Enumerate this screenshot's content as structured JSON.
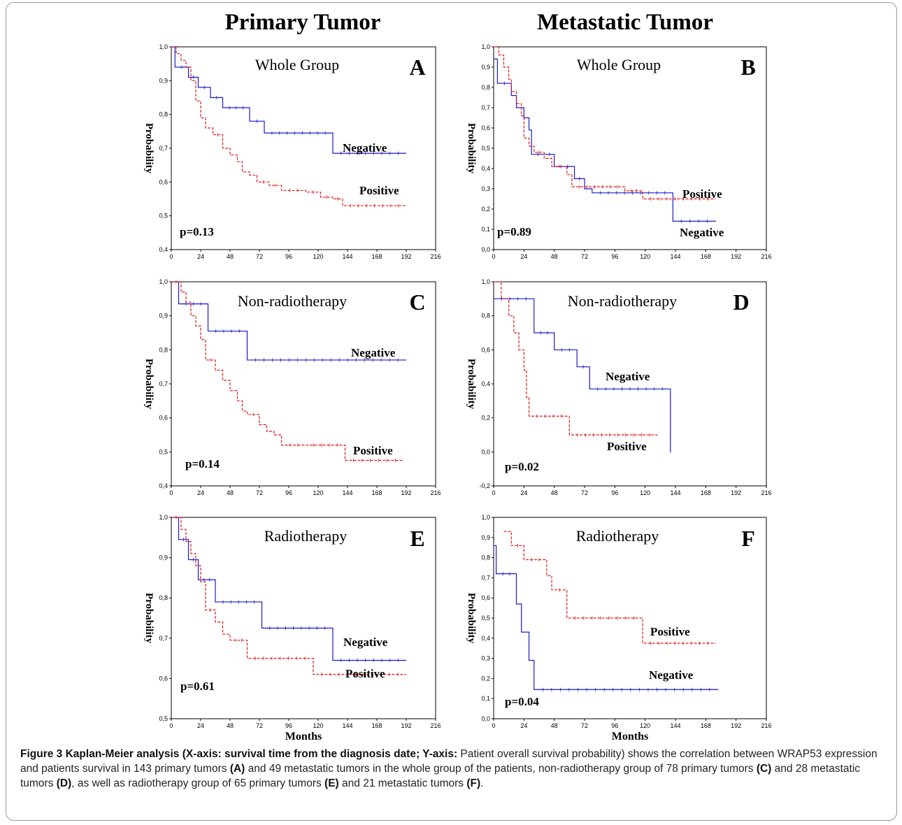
{
  "columns": {
    "left": "Primary Tumor",
    "right": "Metastatic Tumor"
  },
  "caption": {
    "figure_label": "Figure 3",
    "bold_lead": "Kaplan-Meier analysis (X-axis: survival time from the diagnosis date; Y-axis:",
    "text_1": " Patient overall survival probability) shows the correlation between WRAP53 expression and patients survival in 143 primary tumors ",
    "ref_a": "(A)",
    "text_2": " and 49 metastatic tumors in the whole group of the patients, non-radiotherapy group of 78 primary tumors ",
    "ref_c": "(C)",
    "text_3": " and 28 metastatic tumors ",
    "ref_d": "(D)",
    "text_4": ", as well as radiotherapy group of 65 primary tumors ",
    "ref_e": "(E)",
    "text_5": " and 21 metastatic tumors ",
    "ref_f": "(F)",
    "text_6": "."
  },
  "colors": {
    "negative": "#1a1acc",
    "positive": "#e01a1a"
  },
  "chart_data": [
    {
      "panel": "A",
      "type": "line",
      "title": "Whole Group",
      "ylabel": "Probability",
      "xlabel": "",
      "ylim": [
        0.4,
        1.0
      ],
      "xlim": [
        0,
        216
      ],
      "yticks": [
        "1,0",
        "0,9",
        "0,8",
        "0,7",
        "0,6",
        "0,5",
        "0,4"
      ],
      "xticks": [
        "0",
        "24",
        "48",
        "72",
        "96",
        "120",
        "144",
        "168",
        "192",
        "216"
      ],
      "p_value": "p=0.13",
      "series": [
        {
          "name": "Negative",
          "style": "solid",
          "censored_until": 192,
          "steps": [
            [
              0,
              1.0
            ],
            [
              3,
              0.94
            ],
            [
              14,
              0.91
            ],
            [
              22,
              0.88
            ],
            [
              32,
              0.85
            ],
            [
              42,
              0.82
            ],
            [
              64,
              0.78
            ],
            [
              76,
              0.745
            ],
            [
              132,
              0.685
            ],
            [
              192,
              0.685
            ]
          ]
        },
        {
          "name": "Positive",
          "style": "dashed",
          "censored_until": 192,
          "steps": [
            [
              0,
              1.0
            ],
            [
              4,
              0.98
            ],
            [
              8,
              0.96
            ],
            [
              12,
              0.94
            ],
            [
              16,
              0.9
            ],
            [
              20,
              0.84
            ],
            [
              24,
              0.79
            ],
            [
              28,
              0.76
            ],
            [
              34,
              0.74
            ],
            [
              42,
              0.7
            ],
            [
              48,
              0.68
            ],
            [
              54,
              0.66
            ],
            [
              58,
              0.63
            ],
            [
              64,
              0.62
            ],
            [
              70,
              0.6
            ],
            [
              80,
              0.59
            ],
            [
              90,
              0.575
            ],
            [
              110,
              0.57
            ],
            [
              122,
              0.555
            ],
            [
              132,
              0.55
            ],
            [
              140,
              0.53
            ],
            [
              192,
              0.53
            ]
          ]
        }
      ]
    },
    {
      "panel": "B",
      "type": "line",
      "title": "Whole Group",
      "ylabel": "Probability",
      "xlabel": "",
      "ylim": [
        0.0,
        1.0
      ],
      "xlim": [
        0,
        216
      ],
      "yticks": [
        "1,0",
        "0,9",
        "0,8",
        "0,7",
        "0,6",
        "0,5",
        "0,4",
        "0,3",
        "0,2",
        "0,1",
        "0,0"
      ],
      "xticks": [
        "0",
        "24",
        "48",
        "72",
        "96",
        "120",
        "144",
        "168",
        "192",
        "216"
      ],
      "p_value": "p=0.89",
      "series": [
        {
          "name": "Negative",
          "style": "solid",
          "censored_until": 176,
          "steps": [
            [
              0,
              0.94
            ],
            [
              3,
              0.82
            ],
            [
              14,
              0.76
            ],
            [
              18,
              0.7
            ],
            [
              24,
              0.65
            ],
            [
              28,
              0.59
            ],
            [
              30,
              0.47
            ],
            [
              40,
              0.47
            ],
            [
              48,
              0.41
            ],
            [
              64,
              0.35
            ],
            [
              72,
              0.3
            ],
            [
              78,
              0.28
            ],
            [
              142,
              0.14
            ],
            [
              176,
              0.14
            ]
          ]
        },
        {
          "name": "Positive",
          "style": "dashed",
          "censored_until": 176,
          "steps": [
            [
              0,
              1.0
            ],
            [
              4,
              0.96
            ],
            [
              8,
              0.9
            ],
            [
              12,
              0.84
            ],
            [
              14,
              0.78
            ],
            [
              18,
              0.72
            ],
            [
              22,
              0.66
            ],
            [
              24,
              0.55
            ],
            [
              28,
              0.51
            ],
            [
              32,
              0.48
            ],
            [
              40,
              0.45
            ],
            [
              46,
              0.41
            ],
            [
              58,
              0.37
            ],
            [
              62,
              0.31
            ],
            [
              104,
              0.29
            ],
            [
              118,
              0.25
            ],
            [
              176,
              0.25
            ]
          ]
        }
      ]
    },
    {
      "panel": "C",
      "type": "line",
      "title": "Non-radiotherapy",
      "ylabel": "Probability",
      "xlabel": "",
      "ylim": [
        0.4,
        1.0
      ],
      "xlim": [
        0,
        216
      ],
      "yticks": [
        "1,0",
        "0,9",
        "0,8",
        "0,7",
        "0,6",
        "0,5",
        "0,4"
      ],
      "xticks": [
        "0",
        "24",
        "48",
        "72",
        "96",
        "120",
        "144",
        "168",
        "192",
        "216"
      ],
      "p_value": "p=0.14",
      "series": [
        {
          "name": "Negative",
          "style": "solid",
          "censored_until": 192,
          "steps": [
            [
              0,
              1.0
            ],
            [
              6,
              0.935
            ],
            [
              30,
              0.855
            ],
            [
              62,
              0.77
            ],
            [
              192,
              0.77
            ]
          ]
        },
        {
          "name": "Positive",
          "style": "dashed",
          "censored_until": 190,
          "steps": [
            [
              0,
              1.0
            ],
            [
              8,
              0.97
            ],
            [
              12,
              0.94
            ],
            [
              16,
              0.9
            ],
            [
              20,
              0.87
            ],
            [
              24,
              0.83
            ],
            [
              28,
              0.77
            ],
            [
              36,
              0.74
            ],
            [
              42,
              0.71
            ],
            [
              48,
              0.68
            ],
            [
              54,
              0.65
            ],
            [
              58,
              0.62
            ],
            [
              62,
              0.61
            ],
            [
              72,
              0.58
            ],
            [
              78,
              0.56
            ],
            [
              84,
              0.55
            ],
            [
              90,
              0.52
            ],
            [
              110,
              0.52
            ],
            [
              142,
              0.475
            ],
            [
              190,
              0.475
            ]
          ]
        }
      ]
    },
    {
      "panel": "D",
      "type": "line",
      "title": "Non-radiotherapy",
      "ylabel": "Probability",
      "xlabel": "",
      "ylim": [
        -0.2,
        1.0
      ],
      "xlim": [
        0,
        216
      ],
      "yticks": [
        "1,0",
        "0,8",
        "0,6",
        "0,4",
        "0,2",
        "0,0",
        "-0,2"
      ],
      "xticks": [
        "0",
        "24",
        "48",
        "72",
        "96",
        "120",
        "144",
        "168",
        "192",
        "216"
      ],
      "p_value": "p=0.02",
      "series": [
        {
          "name": "Negative",
          "style": "solid",
          "censored_until": 140,
          "steps": [
            [
              0,
              0.9
            ],
            [
              32,
              0.7
            ],
            [
              48,
              0.6
            ],
            [
              66,
              0.5
            ],
            [
              76,
              0.37
            ],
            [
              140,
              0.0
            ],
            [
              140.5,
              0.0
            ]
          ]
        },
        {
          "name": "Positive",
          "style": "dashed",
          "censored_until": 130,
          "steps": [
            [
              0,
              1.0
            ],
            [
              6,
              0.9
            ],
            [
              12,
              0.8
            ],
            [
              16,
              0.7
            ],
            [
              20,
              0.6
            ],
            [
              24,
              0.48
            ],
            [
              26,
              0.32
            ],
            [
              28,
              0.21
            ],
            [
              60,
              0.1
            ],
            [
              130,
              0.1
            ]
          ]
        }
      ]
    },
    {
      "panel": "E",
      "type": "line",
      "title": "Radiotherapy",
      "ylabel": "Probability",
      "xlabel": "Months",
      "ylim": [
        0.5,
        1.0
      ],
      "xlim": [
        0,
        216
      ],
      "yticks": [
        "1,0",
        "0,9",
        "0,8",
        "0,7",
        "0,6",
        "0,5"
      ],
      "xticks": [
        "0",
        "24",
        "48",
        "72",
        "96",
        "120",
        "144",
        "168",
        "192",
        "216"
      ],
      "p_value": "p=0.61",
      "series": [
        {
          "name": "Negative",
          "style": "solid",
          "censored_until": 192,
          "steps": [
            [
              0,
              1.0
            ],
            [
              6,
              0.945
            ],
            [
              14,
              0.895
            ],
            [
              22,
              0.845
            ],
            [
              36,
              0.79
            ],
            [
              74,
              0.725
            ],
            [
              132,
              0.645
            ],
            [
              192,
              0.645
            ]
          ]
        },
        {
          "name": "Positive",
          "style": "dashed",
          "censored_until": 192,
          "steps": [
            [
              0,
              1.0
            ],
            [
              8,
              0.97
            ],
            [
              12,
              0.94
            ],
            [
              16,
              0.91
            ],
            [
              20,
              0.88
            ],
            [
              24,
              0.84
            ],
            [
              28,
              0.77
            ],
            [
              36,
              0.74
            ],
            [
              42,
              0.71
            ],
            [
              48,
              0.695
            ],
            [
              62,
              0.65
            ],
            [
              116,
              0.61
            ],
            [
              192,
              0.61
            ]
          ]
        }
      ]
    },
    {
      "panel": "F",
      "type": "line",
      "title": "Radiotherapy",
      "ylabel": "Probability",
      "xlabel": "Months",
      "ylim": [
        0.0,
        1.0
      ],
      "xlim": [
        0,
        216
      ],
      "yticks": [
        "1,0",
        "0,9",
        "0,8",
        "0,7",
        "0,6",
        "0,5",
        "0,4",
        "0,3",
        "0,2",
        "0,1",
        "0,0"
      ],
      "xticks": [
        "0",
        "24",
        "48",
        "72",
        "96",
        "120",
        "144",
        "168",
        "192",
        "216"
      ],
      "p_value": "p=0.04",
      "series": [
        {
          "name": "Negative",
          "style": "solid",
          "censored_until": 178,
          "steps": [
            [
              0,
              0.86
            ],
            [
              2,
              0.72
            ],
            [
              18,
              0.57
            ],
            [
              22,
              0.43
            ],
            [
              28,
              0.29
            ],
            [
              32,
              0.145
            ],
            [
              178,
              0.145
            ]
          ]
        },
        {
          "name": "Positive",
          "style": "dashed",
          "censored_until": 176,
          "steps": [
            [
              8,
              0.93
            ],
            [
              14,
              0.86
            ],
            [
              24,
              0.79
            ],
            [
              42,
              0.71
            ],
            [
              46,
              0.64
            ],
            [
              58,
              0.5
            ],
            [
              118,
              0.375
            ],
            [
              176,
              0.375
            ]
          ]
        }
      ]
    }
  ]
}
